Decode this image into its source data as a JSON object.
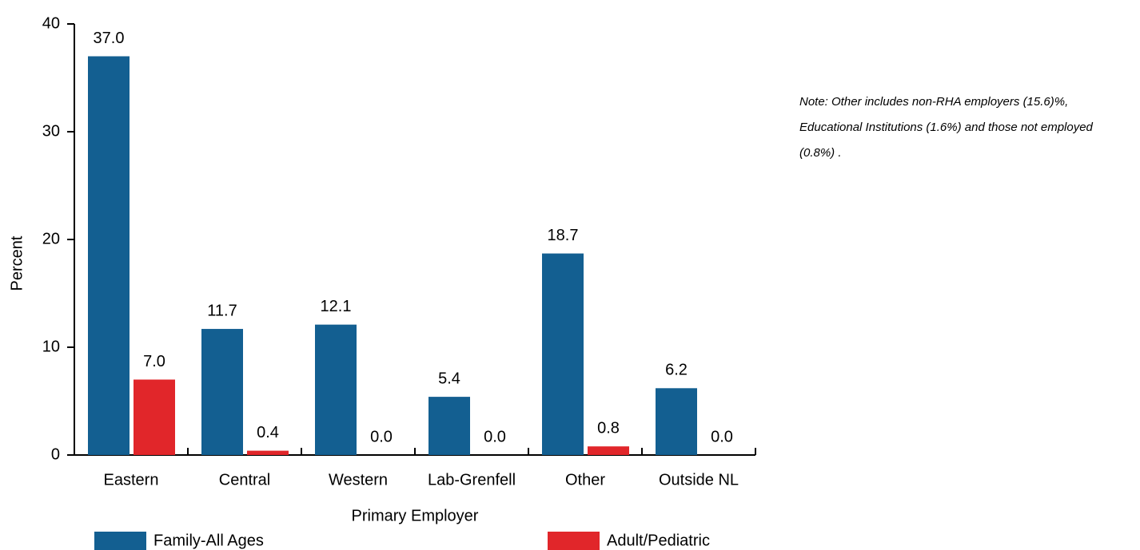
{
  "chart_data": {
    "type": "bar",
    "y_label": "Percent",
    "x_label": "Primary Employer",
    "note": [
      "Note:  Other includes non-RHA employers (15.6)%,",
      "Educational Institutions (1.6%) and those not employed",
      "(0.8%) ."
    ],
    "categories": [
      "Eastern",
      "Central",
      "Western",
      "Lab-Grenfell",
      "Other",
      "Outside NL"
    ],
    "series": [
      {
        "name": "Family-All Ages",
        "color": "#135f91",
        "values": [
          37,
          11.7,
          12.1,
          5.4,
          18.7,
          6.2
        ],
        "value_labels": [
          "37.0",
          "11.7",
          "12.1",
          "5.4",
          "18.7",
          "6.2"
        ]
      },
      {
        "name": "Adult/Pediatric",
        "color": "#e1262a",
        "values": [
          7,
          0.4,
          0,
          0,
          0.8,
          0
        ],
        "value_labels": [
          "7.0",
          "0.4",
          "0.0",
          "0.0",
          "0.8",
          "0.0"
        ]
      }
    ],
    "ylim": [
      0,
      40
    ],
    "yticks": [
      0,
      10,
      20,
      30,
      40
    ]
  }
}
